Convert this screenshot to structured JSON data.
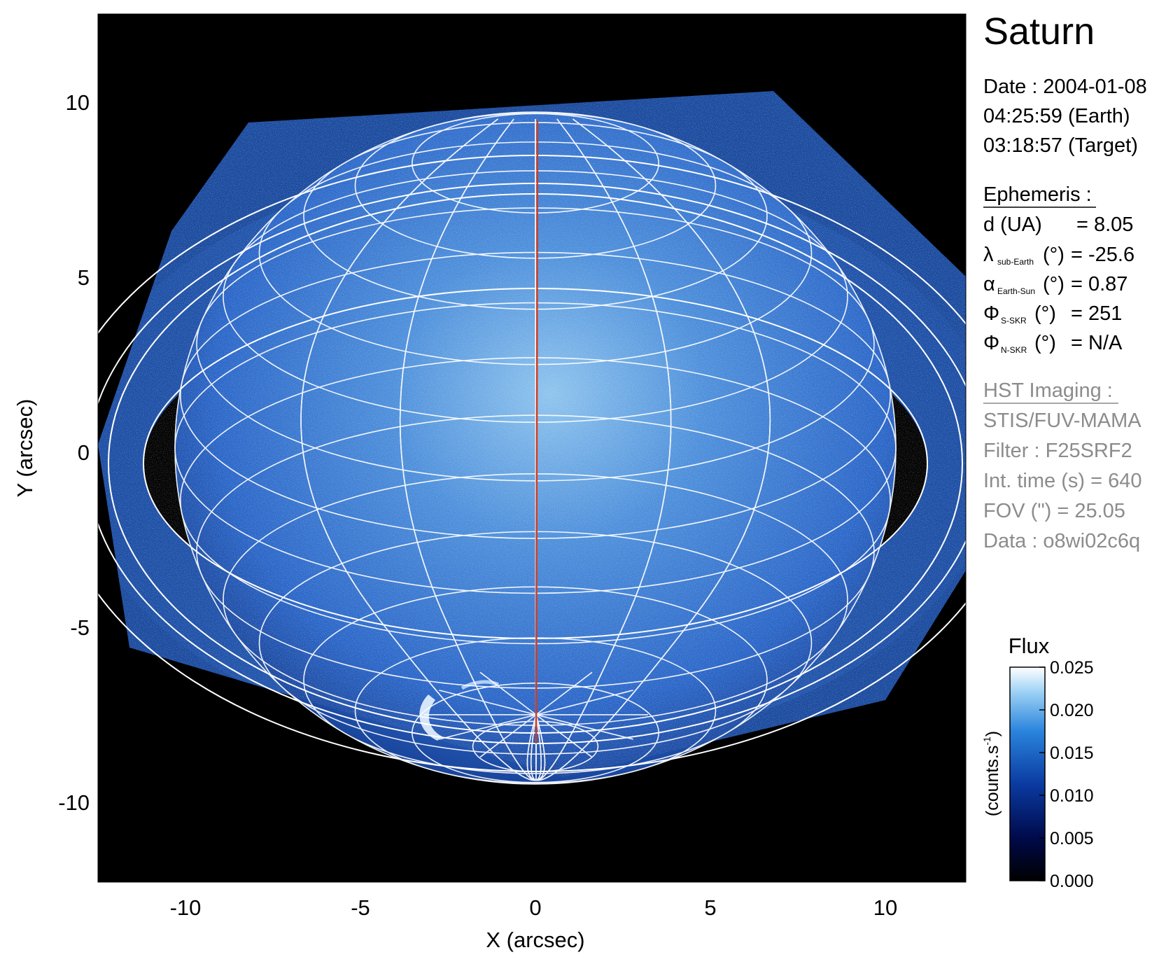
{
  "image": {
    "title": "Saturn",
    "x_label": "X (arcsec)",
    "y_label": "Y (arcsec)",
    "x_ticks": [
      -10,
      -5,
      0,
      5,
      10
    ],
    "y_ticks": [
      10,
      5,
      0,
      -5,
      -10
    ],
    "x_range": [
      -12.525,
      12.525
    ],
    "y_range": [
      -12.525,
      12.525
    ]
  },
  "date_block": {
    "line1": "Date : 2004-01-08",
    "line2": "04:25:59 (Earth)",
    "line3": "03:18:57 (Target)"
  },
  "ephemeris": {
    "heading": "Ephemeris :",
    "d_label": "d (UA)",
    "d_value": "= 8.05",
    "lambda_symbol": "λ",
    "lambda_sub": "sub-Earth",
    "lambda_unit": "(°)",
    "lambda_value": "= -25.6",
    "alpha_symbol": "α",
    "alpha_sub": "Earth-Sun",
    "alpha_unit": "(°)",
    "alpha_value": "= 0.87",
    "phi_s_symbol": "Φ",
    "phi_s_sub": "S-SKR",
    "phi_s_unit": "(°)",
    "phi_s_value": "= 251",
    "phi_n_symbol": "Φ",
    "phi_n_sub": "N-SKR",
    "phi_n_unit": "(°)",
    "phi_n_value": "= N/A"
  },
  "hst": {
    "heading": "HST Imaging :",
    "instrument": "STIS/FUV-MAMA",
    "filter": "Filter : F25SRF2",
    "int_time": "Int. time (s) = 640",
    "fov": "FOV (\") = 25.05",
    "data": "Data : o8wi02c6q"
  },
  "colorbar": {
    "title": "Flux",
    "unit_label": "(counts.s",
    "unit_sup": "-1",
    "unit_close": ")",
    "ticks": [
      "0.025",
      "0.020",
      "0.015",
      "0.010",
      "0.005",
      "0.000"
    ],
    "range": [
      0.0,
      0.025
    ]
  },
  "colors": {
    "background": "#000000",
    "disk": "#2a66c8",
    "grid": "#ffffff",
    "meridian": "#d23c1e",
    "aurora": "#e8f4ff"
  }
}
